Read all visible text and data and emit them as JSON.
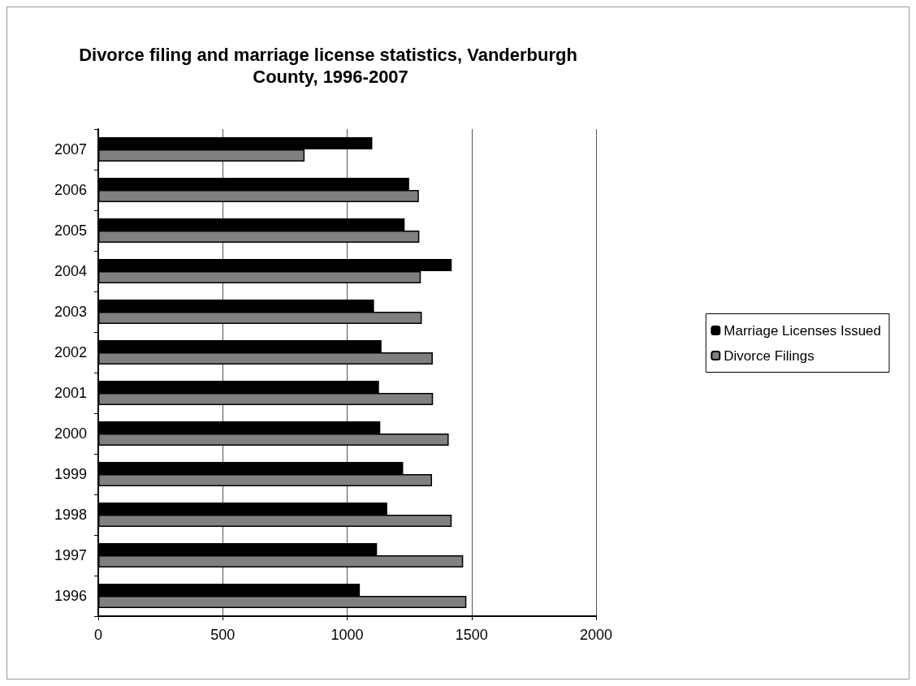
{
  "chart_data": {
    "type": "bar",
    "orientation": "horizontal",
    "title": "Divorce filing and marriage license statistics, Vanderburgh County, 1996-2007",
    "categories": [
      "2007",
      "2006",
      "2005",
      "2004",
      "2003",
      "2002",
      "2001",
      "2000",
      "1999",
      "1998",
      "1997",
      "1996"
    ],
    "series": [
      {
        "name": "Marriage Licenses Issued",
        "color": "#000000",
        "values": [
          1101,
          1249,
          1231,
          1420,
          1108,
          1138,
          1128,
          1133,
          1225,
          1161,
          1120,
          1051
        ]
      },
      {
        "name": "Divorce Filings",
        "color": "#808080",
        "values": [
          829,
          1288,
          1290,
          1296,
          1300,
          1344,
          1345,
          1408,
          1341,
          1420,
          1466,
          1479
        ]
      }
    ],
    "xlim": [
      0,
      2000
    ],
    "xticks": [
      0,
      500,
      1000,
      1500,
      2000
    ],
    "grid": "x",
    "legend": "right"
  }
}
